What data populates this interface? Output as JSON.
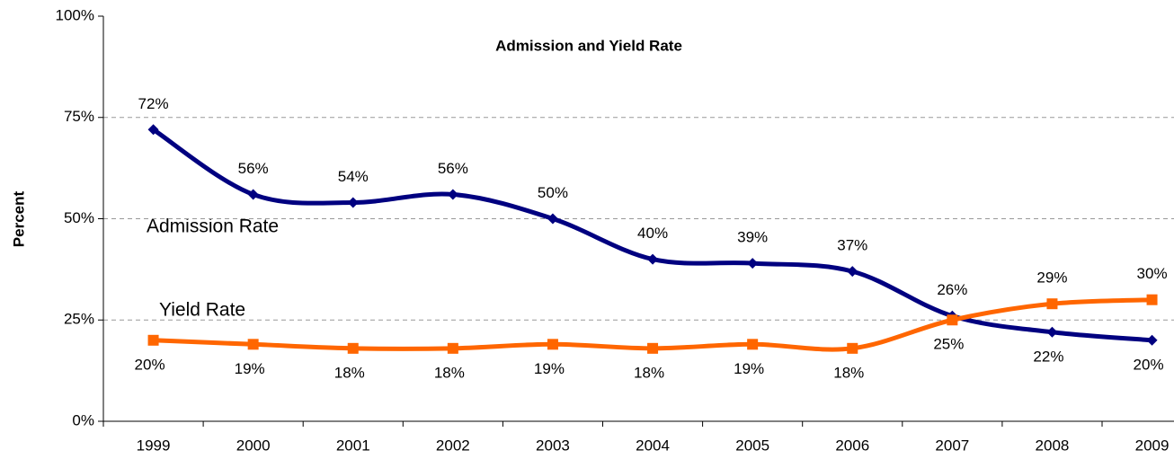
{
  "chart_data": {
    "type": "line",
    "title": "Admission and Yield Rate",
    "y_label": "Percent",
    "annotations": [
      "Admission Rate",
      "Yield Rate"
    ],
    "categories": [
      "1999",
      "2000",
      "2001",
      "2002",
      "2003",
      "2004",
      "2005",
      "2006",
      "2007",
      "2008",
      "2009"
    ],
    "series": [
      {
        "name": "Admission Rate",
        "color": "#000080",
        "marker": "diamond",
        "values": [
          72,
          56,
          54,
          56,
          50,
          40,
          39,
          37,
          26,
          22,
          20
        ],
        "value_labels": [
          "72%",
          "56%",
          "54%",
          "56%",
          "50%",
          "40%",
          "39%",
          "37%",
          "26%",
          "22%",
          "20%"
        ]
      },
      {
        "name": "Yield Rate",
        "color": "#ff6600",
        "marker": "square",
        "values": [
          20,
          19,
          18,
          18,
          19,
          18,
          19,
          18,
          25,
          29,
          30
        ],
        "value_labels": [
          "20%",
          "19%",
          "18%",
          "18%",
          "19%",
          "18%",
          "19%",
          "18%",
          "25%",
          "29%",
          "30%"
        ]
      }
    ],
    "ylim": [
      0,
      100
    ],
    "yticks": [
      {
        "value": 0,
        "label": "0%"
      },
      {
        "value": 25,
        "label": "25%"
      },
      {
        "value": 50,
        "label": "50%"
      },
      {
        "value": 75,
        "label": "75%"
      },
      {
        "value": 100,
        "label": "100%"
      }
    ],
    "grid": true,
    "legend": false
  }
}
